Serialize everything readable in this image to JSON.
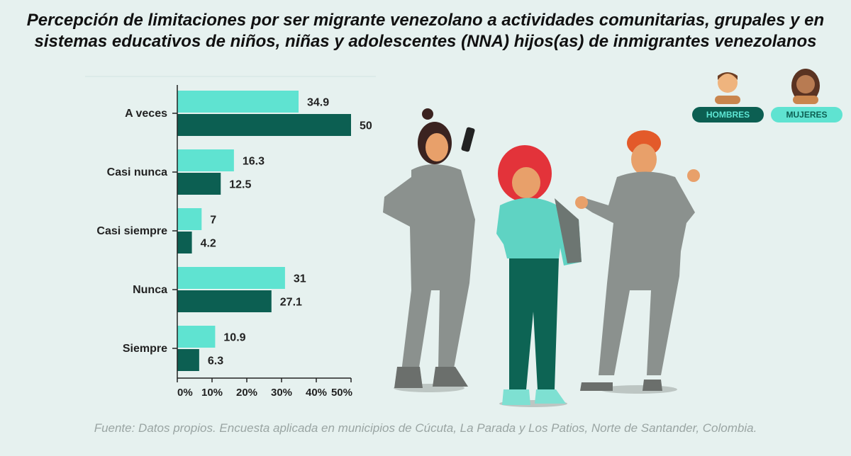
{
  "title_lines": [
    "Percepción de limitaciones por ser migrante venezolano a actividades comunitarias, grupales y en",
    "sistemas educativos de niños, niñas y adolescentes (NNA) hijos(as) de inmigrantes venezolanos"
  ],
  "source": "Fuente: Datos propios. Encuesta aplicada en municipios de Cúcuta, La Parada y Los Patios, Norte de Santander, Colombia.",
  "legend": {
    "hombres": "HOMBRES",
    "mujeres": "MUJERES"
  },
  "colors": {
    "mujeres": "#5fe3d1",
    "hombres": "#0c5f52",
    "background": "#e6f1ef"
  },
  "chart_data": {
    "type": "bar",
    "orientation": "horizontal",
    "categories": [
      "A veces",
      "Casi nunca",
      "Casi siempre",
      "Nunca",
      "Siempre"
    ],
    "series": [
      {
        "name": "MUJERES",
        "values": [
          34.9,
          16.3,
          7,
          31,
          10.9
        ],
        "labels": [
          "34.9",
          "16.3",
          "7",
          "31",
          "10.9"
        ]
      },
      {
        "name": "HOMBRES",
        "values": [
          50,
          12.5,
          4.2,
          27.1,
          6.3
        ],
        "labels": [
          "50",
          "12.5",
          "4.2",
          "27.1",
          "6.3"
        ]
      }
    ],
    "xlim": [
      0,
      50
    ],
    "xticks": [
      0,
      10,
      20,
      30,
      40,
      50
    ],
    "xtick_labels": [
      "0%",
      "10%",
      "20%",
      "30%",
      "40%",
      "50%"
    ],
    "legend_position": "top-right",
    "grid": false
  }
}
